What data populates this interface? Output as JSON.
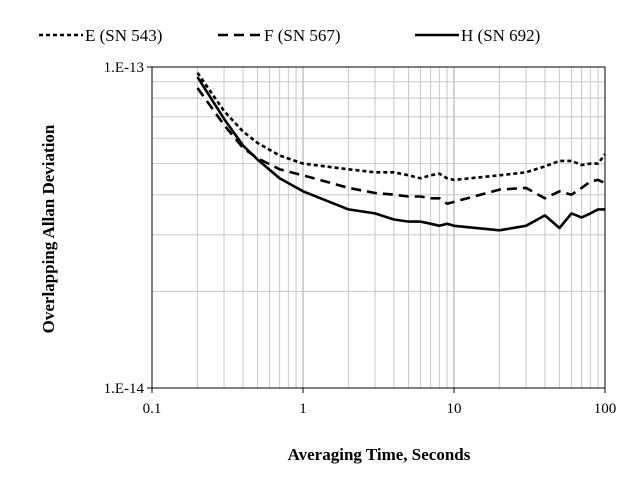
{
  "chart_data": {
    "type": "line",
    "title": "",
    "xlabel": "Averaging Time, Seconds",
    "ylabel": "Overlapping Allan Deviation",
    "x_scale": "log",
    "y_scale": "log",
    "xlim": [
      0.1,
      100
    ],
    "ylim": [
      1e-14,
      1e-13
    ],
    "x_ticks": [
      "0.1",
      "1",
      "10",
      "100"
    ],
    "y_ticks": [
      "1.E-14",
      "1.E-13"
    ],
    "grid": true,
    "legend_position": "top",
    "series": [
      {
        "name": "E (SN 543)",
        "style": "dotted",
        "color": "#000000",
        "x": [
          0.2,
          0.3,
          0.4,
          0.5,
          0.7,
          1,
          2,
          3,
          4,
          5,
          6,
          7,
          8,
          9,
          10,
          20,
          30,
          40,
          50,
          60,
          70,
          80,
          90,
          100
        ],
        "y": [
          9.6e-14,
          7.3e-14,
          6.3e-14,
          5.8e-14,
          5.3e-14,
          5e-14,
          4.8e-14,
          4.7e-14,
          4.7e-14,
          4.6e-14,
          4.5e-14,
          4.6e-14,
          4.65e-14,
          4.5e-14,
          4.45e-14,
          4.6e-14,
          4.7e-14,
          4.9e-14,
          5.1e-14,
          5.1e-14,
          4.95e-14,
          5e-14,
          5e-14,
          5.35e-14
        ]
      },
      {
        "name": "F (SN 567)",
        "style": "dashed",
        "color": "#000000",
        "x": [
          0.2,
          0.3,
          0.4,
          0.5,
          0.7,
          1,
          2,
          3,
          4,
          5,
          6,
          7,
          8,
          9,
          10,
          20,
          30,
          40,
          50,
          60,
          70,
          80,
          90,
          100
        ],
        "y": [
          8.6e-14,
          6.6e-14,
          5.6e-14,
          5.2e-14,
          4.8e-14,
          4.6e-14,
          4.2e-14,
          4.05e-14,
          4e-14,
          3.95e-14,
          3.95e-14,
          3.9e-14,
          3.9e-14,
          3.75e-14,
          3.8e-14,
          4.15e-14,
          4.2e-14,
          3.9e-14,
          4.1e-14,
          4e-14,
          4.2e-14,
          4.4e-14,
          4.45e-14,
          4.35e-14
        ]
      },
      {
        "name": "H (SN 692)",
        "style": "solid",
        "color": "#000000",
        "x": [
          0.2,
          0.3,
          0.4,
          0.5,
          0.7,
          1,
          2,
          3,
          4,
          5,
          6,
          7,
          8,
          9,
          10,
          20,
          30,
          40,
          50,
          60,
          70,
          80,
          90,
          100
        ],
        "y": [
          9.3e-14,
          6.9e-14,
          5.7e-14,
          5.15e-14,
          4.5e-14,
          4.1e-14,
          3.6e-14,
          3.5e-14,
          3.35e-14,
          3.3e-14,
          3.3e-14,
          3.25e-14,
          3.2e-14,
          3.25e-14,
          3.2e-14,
          3.1e-14,
          3.2e-14,
          3.45e-14,
          3.15e-14,
          3.5e-14,
          3.4e-14,
          3.5e-14,
          3.6e-14,
          3.6e-14
        ]
      }
    ]
  }
}
